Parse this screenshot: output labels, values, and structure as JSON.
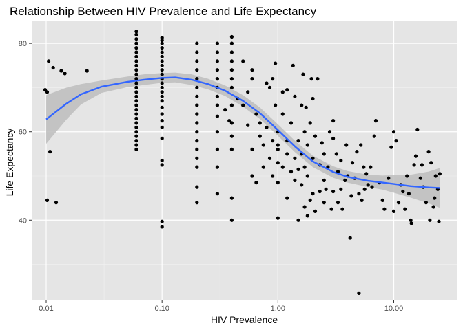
{
  "chart_data": {
    "type": "scatter",
    "title": "Relationship Between HIV Prevalence and Life Expectancy",
    "xlabel": "HIV Prevalence",
    "ylabel": "Life Expectancy",
    "x_scale": "log10",
    "xlim": [
      0.0075,
      35
    ],
    "ylim": [
      22,
      85
    ],
    "x_ticks": [
      0.01,
      0.1,
      1,
      10
    ],
    "x_tick_labels": [
      "0.01",
      "0.10",
      "1.00",
      "10.00"
    ],
    "x_minor_ticks": [
      0.0316,
      0.316,
      3.16
    ],
    "y_ticks": [
      40,
      60,
      80
    ],
    "y_tick_labels": [
      "40",
      "60",
      "80"
    ],
    "y_minor_ticks": [
      30,
      50,
      70
    ],
    "grid": true,
    "background": "#e5e5e5",
    "point_color": "#000000",
    "smooth_color": "#3366ff",
    "band_color": "#bdbdbd",
    "points": [
      [
        0.0098,
        69.5
      ],
      [
        0.0102,
        44.5
      ],
      [
        0.0102,
        69.0
      ],
      [
        0.0105,
        76.0
      ],
      [
        0.0108,
        55.5
      ],
      [
        0.0115,
        74.5
      ],
      [
        0.0122,
        44.0
      ],
      [
        0.0135,
        73.8
      ],
      [
        0.0145,
        73.2
      ],
      [
        0.0225,
        73.8
      ],
      [
        0.06,
        56
      ],
      [
        0.06,
        57
      ],
      [
        0.06,
        58
      ],
      [
        0.06,
        59
      ],
      [
        0.06,
        60
      ],
      [
        0.06,
        61
      ],
      [
        0.06,
        62
      ],
      [
        0.06,
        63
      ],
      [
        0.06,
        64
      ],
      [
        0.06,
        65
      ],
      [
        0.06,
        66
      ],
      [
        0.06,
        67
      ],
      [
        0.06,
        68
      ],
      [
        0.06,
        69
      ],
      [
        0.06,
        70
      ],
      [
        0.06,
        71
      ],
      [
        0.06,
        72
      ],
      [
        0.06,
        73
      ],
      [
        0.06,
        74
      ],
      [
        0.06,
        75
      ],
      [
        0.06,
        76
      ],
      [
        0.06,
        77
      ],
      [
        0.06,
        78
      ],
      [
        0.06,
        79
      ],
      [
        0.06,
        80
      ],
      [
        0.06,
        81
      ],
      [
        0.06,
        82
      ],
      [
        0.06,
        82.7
      ],
      [
        0.1,
        38.5
      ],
      [
        0.1,
        39.7
      ],
      [
        0.1,
        52.5
      ],
      [
        0.1,
        53.5
      ],
      [
        0.1,
        58.5
      ],
      [
        0.1,
        61
      ],
      [
        0.1,
        62.5
      ],
      [
        0.1,
        64
      ],
      [
        0.1,
        65.5
      ],
      [
        0.1,
        67
      ],
      [
        0.1,
        68
      ],
      [
        0.1,
        69
      ],
      [
        0.1,
        70
      ],
      [
        0.1,
        71
      ],
      [
        0.1,
        72
      ],
      [
        0.1,
        73
      ],
      [
        0.1,
        74
      ],
      [
        0.1,
        75
      ],
      [
        0.1,
        76
      ],
      [
        0.1,
        77
      ],
      [
        0.1,
        78
      ],
      [
        0.1,
        79
      ],
      [
        0.1,
        80
      ],
      [
        0.1,
        80.7
      ],
      [
        0.1,
        81.3
      ],
      [
        0.2,
        44
      ],
      [
        0.2,
        47.5
      ],
      [
        0.2,
        52
      ],
      [
        0.2,
        54
      ],
      [
        0.2,
        56
      ],
      [
        0.2,
        58
      ],
      [
        0.2,
        60
      ],
      [
        0.2,
        62
      ],
      [
        0.2,
        64
      ],
      [
        0.2,
        66
      ],
      [
        0.2,
        68
      ],
      [
        0.2,
        70
      ],
      [
        0.2,
        72
      ],
      [
        0.2,
        74
      ],
      [
        0.2,
        76
      ],
      [
        0.2,
        78
      ],
      [
        0.2,
        80
      ],
      [
        0.3,
        46
      ],
      [
        0.3,
        52
      ],
      [
        0.3,
        56
      ],
      [
        0.3,
        60
      ],
      [
        0.3,
        63.5
      ],
      [
        0.3,
        66
      ],
      [
        0.3,
        68
      ],
      [
        0.3,
        70
      ],
      [
        0.3,
        72
      ],
      [
        0.3,
        74
      ],
      [
        0.3,
        76
      ],
      [
        0.3,
        78
      ],
      [
        0.3,
        80
      ],
      [
        0.35,
        65
      ],
      [
        0.38,
        62.5
      ],
      [
        0.4,
        40
      ],
      [
        0.4,
        45
      ],
      [
        0.4,
        56
      ],
      [
        0.4,
        59
      ],
      [
        0.4,
        62
      ],
      [
        0.4,
        66
      ],
      [
        0.4,
        70
      ],
      [
        0.4,
        72
      ],
      [
        0.4,
        74
      ],
      [
        0.4,
        76
      ],
      [
        0.4,
        78
      ],
      [
        0.4,
        80
      ],
      [
        0.4,
        81.5
      ],
      [
        0.45,
        67.5
      ],
      [
        0.5,
        66
      ],
      [
        0.5,
        76
      ],
      [
        0.55,
        61.5
      ],
      [
        0.55,
        69
      ],
      [
        0.6,
        50
      ],
      [
        0.6,
        56
      ],
      [
        0.6,
        72
      ],
      [
        0.6,
        74
      ],
      [
        0.65,
        48.5
      ],
      [
        0.65,
        64
      ],
      [
        0.7,
        59
      ],
      [
        0.7,
        62
      ],
      [
        0.75,
        52
      ],
      [
        0.75,
        57
      ],
      [
        0.8,
        61
      ],
      [
        0.8,
        71
      ],
      [
        0.85,
        54
      ],
      [
        0.85,
        70
      ],
      [
        0.9,
        50
      ],
      [
        0.9,
        58
      ],
      [
        0.9,
        72
      ],
      [
        0.95,
        66
      ],
      [
        0.95,
        75.5
      ],
      [
        1.0,
        40.5
      ],
      [
        1.0,
        48.5
      ],
      [
        1.0,
        53
      ],
      [
        1.0,
        56
      ],
      [
        1.0,
        57
      ],
      [
        1.0,
        60
      ],
      [
        1.1,
        52
      ],
      [
        1.1,
        64
      ],
      [
        1.1,
        69
      ],
      [
        1.2,
        45
      ],
      [
        1.2,
        55
      ],
      [
        1.2,
        58
      ],
      [
        1.2,
        69.5
      ],
      [
        1.3,
        51
      ],
      [
        1.3,
        62
      ],
      [
        1.35,
        75
      ],
      [
        1.4,
        49
      ],
      [
        1.4,
        54
      ],
      [
        1.4,
        68
      ],
      [
        1.5,
        40
      ],
      [
        1.5,
        51.5
      ],
      [
        1.5,
        58
      ],
      [
        1.6,
        48
      ],
      [
        1.6,
        55
      ],
      [
        1.6,
        66
      ],
      [
        1.65,
        73
      ],
      [
        1.7,
        43
      ],
      [
        1.7,
        52
      ],
      [
        1.7,
        60
      ],
      [
        1.75,
        65.5
      ],
      [
        1.8,
        41
      ],
      [
        1.8,
        50
      ],
      [
        1.8,
        57
      ],
      [
        1.9,
        44.5
      ],
      [
        1.9,
        62
      ],
      [
        1.95,
        72
      ],
      [
        2.0,
        46
      ],
      [
        2.0,
        54
      ],
      [
        2.0,
        67.5
      ],
      [
        2.1,
        42
      ],
      [
        2.1,
        59
      ],
      [
        2.2,
        72
      ],
      [
        2.3,
        46.5
      ],
      [
        2.3,
        52.5
      ],
      [
        2.4,
        57.5
      ],
      [
        2.5,
        44
      ],
      [
        2.5,
        49
      ],
      [
        2.5,
        55
      ],
      [
        2.6,
        47
      ],
      [
        2.7,
        52
      ],
      [
        2.8,
        60
      ],
      [
        2.9,
        42.5
      ],
      [
        3.0,
        46.5
      ],
      [
        3.0,
        58.5
      ],
      [
        3.0,
        62.5
      ],
      [
        3.2,
        55
      ],
      [
        3.3,
        44
      ],
      [
        3.3,
        51
      ],
      [
        3.5,
        47
      ],
      [
        3.5,
        53.5
      ],
      [
        3.6,
        42.5
      ],
      [
        3.8,
        49
      ],
      [
        3.9,
        57
      ],
      [
        4.0,
        50
      ],
      [
        4.2,
        36
      ],
      [
        4.3,
        45.5
      ],
      [
        4.4,
        53
      ],
      [
        4.6,
        49.5
      ],
      [
        4.8,
        55.5
      ],
      [
        5.0,
        23.5
      ],
      [
        5.0,
        46
      ],
      [
        5.2,
        57
      ],
      [
        5.3,
        44.5
      ],
      [
        5.5,
        52
      ],
      [
        5.6,
        47
      ],
      [
        5.8,
        50.5
      ],
      [
        6.0,
        48
      ],
      [
        6.3,
        52
      ],
      [
        6.5,
        47.5
      ],
      [
        6.8,
        59
      ],
      [
        7.0,
        62.5
      ],
      [
        7.5,
        48.5
      ],
      [
        8.0,
        44.5
      ],
      [
        8.3,
        42.5
      ],
      [
        9.0,
        49.5
      ],
      [
        9.5,
        56.5
      ],
      [
        10,
        42
      ],
      [
        10,
        60
      ],
      [
        10.5,
        58
      ],
      [
        11,
        44
      ],
      [
        11.5,
        48
      ],
      [
        12,
        46.5
      ],
      [
        12.5,
        42.5
      ],
      [
        13,
        50
      ],
      [
        13.5,
        46
      ],
      [
        14,
        40
      ],
      [
        14.2,
        39.3
      ],
      [
        15,
        52.5
      ],
      [
        15.5,
        54.5
      ],
      [
        16,
        60.5
      ],
      [
        17,
        49.5
      ],
      [
        17.5,
        52.5
      ],
      [
        18,
        47.5
      ],
      [
        19,
        44
      ],
      [
        20,
        55.5
      ],
      [
        20.5,
        40
      ],
      [
        21,
        53
      ],
      [
        22,
        43
      ],
      [
        22.5,
        45
      ],
      [
        23,
        50
      ],
      [
        24,
        47
      ],
      [
        24.5,
        39.7
      ],
      [
        25,
        50.5
      ]
    ],
    "smooth_curve": [
      [
        0.01,
        62.8
      ],
      [
        0.015,
        66.4
      ],
      [
        0.02,
        68.5
      ],
      [
        0.03,
        70.2
      ],
      [
        0.05,
        71.3
      ],
      [
        0.07,
        71.8
      ],
      [
        0.1,
        72.2
      ],
      [
        0.13,
        72.3
      ],
      [
        0.18,
        71.8
      ],
      [
        0.25,
        70.8
      ],
      [
        0.35,
        69.3
      ],
      [
        0.5,
        67.0
      ],
      [
        0.7,
        64.2
      ],
      [
        1.0,
        60.4
      ],
      [
        1.4,
        56.7
      ],
      [
        2.0,
        53.3
      ],
      [
        3.0,
        50.9
      ],
      [
        4.0,
        49.8
      ],
      [
        6.0,
        48.9
      ],
      [
        8.0,
        48.5
      ],
      [
        10,
        48.2
      ],
      [
        14,
        47.7
      ],
      [
        20,
        47.4
      ],
      [
        25,
        47.3
      ]
    ],
    "band_upper": [
      [
        0.01,
        68.3
      ],
      [
        0.015,
        70.0
      ],
      [
        0.02,
        70.8
      ],
      [
        0.03,
        71.6
      ],
      [
        0.05,
        72.5
      ],
      [
        0.07,
        73.0
      ],
      [
        0.1,
        73.3
      ],
      [
        0.13,
        73.4
      ],
      [
        0.18,
        73.0
      ],
      [
        0.25,
        72.0
      ],
      [
        0.35,
        70.5
      ],
      [
        0.5,
        68.3
      ],
      [
        0.7,
        65.5
      ],
      [
        1.0,
        61.7
      ],
      [
        1.4,
        58.0
      ],
      [
        2.0,
        54.6
      ],
      [
        3.0,
        52.2
      ],
      [
        4.0,
        51.1
      ],
      [
        6.0,
        50.3
      ],
      [
        8.0,
        50.1
      ],
      [
        10,
        50.2
      ],
      [
        14,
        50.3
      ],
      [
        20,
        51.0
      ],
      [
        25,
        51.8
      ]
    ],
    "band_lower": [
      [
        0.01,
        57.3
      ],
      [
        0.015,
        62.8
      ],
      [
        0.02,
        66.2
      ],
      [
        0.03,
        68.8
      ],
      [
        0.05,
        70.1
      ],
      [
        0.07,
        70.6
      ],
      [
        0.1,
        71.1
      ],
      [
        0.13,
        71.2
      ],
      [
        0.18,
        70.6
      ],
      [
        0.25,
        69.6
      ],
      [
        0.35,
        68.1
      ],
      [
        0.5,
        65.7
      ],
      [
        0.7,
        62.9
      ],
      [
        1.0,
        59.1
      ],
      [
        1.4,
        55.4
      ],
      [
        2.0,
        52.0
      ],
      [
        3.0,
        49.6
      ],
      [
        4.0,
        48.5
      ],
      [
        6.0,
        47.5
      ],
      [
        8.0,
        46.9
      ],
      [
        10,
        46.2
      ],
      [
        14,
        45.1
      ],
      [
        20,
        43.8
      ],
      [
        25,
        42.8
      ]
    ]
  }
}
